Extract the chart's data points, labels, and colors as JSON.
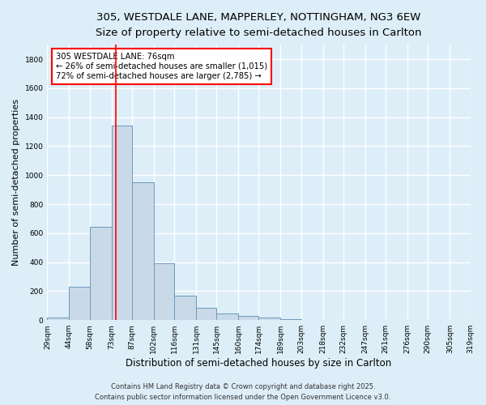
{
  "title_line1": "305, WESTDALE LANE, MAPPERLEY, NOTTINGHAM, NG3 6EW",
  "title_line2": "Size of property relative to semi-detached houses in Carlton",
  "xlabel": "Distribution of semi-detached houses by size in Carlton",
  "ylabel": "Number of semi-detached properties",
  "bar_edges": [
    29,
    44,
    58,
    73,
    87,
    102,
    116,
    131,
    145,
    160,
    174,
    189,
    203,
    218,
    232,
    247,
    261,
    276,
    290,
    305,
    319
  ],
  "bar_heights": [
    20,
    230,
    645,
    1340,
    950,
    390,
    170,
    85,
    47,
    30,
    20,
    8,
    3,
    1,
    0,
    0,
    0,
    0,
    0,
    0
  ],
  "bar_color": "#c9d9e8",
  "bar_edgecolor": "#6a9abf",
  "ylim": [
    0,
    1900
  ],
  "yticks": [
    0,
    200,
    400,
    600,
    800,
    1000,
    1200,
    1400,
    1600,
    1800
  ],
  "red_line_x": 76,
  "annotation_title": "305 WESTDALE LANE: 76sqm",
  "annotation_line2": "← 26% of semi-detached houses are smaller (1,015)",
  "annotation_line3": "72% of semi-detached houses are larger (2,785) →",
  "annotation_box_color": "white",
  "annotation_box_edgecolor": "red",
  "red_line_color": "red",
  "footer_line1": "Contains HM Land Registry data © Crown copyright and database right 2025.",
  "footer_line2": "Contains public sector information licensed under the Open Government Licence v3.0.",
  "background_color": "#ddeef8",
  "grid_color": "white",
  "title1_fontsize": 9.5,
  "title2_fontsize": 8.5,
  "xlabel_fontsize": 8.5,
  "ylabel_fontsize": 8,
  "tick_fontsize": 6.5,
  "footer_fontsize": 6,
  "ann_fontsize": 7.2
}
